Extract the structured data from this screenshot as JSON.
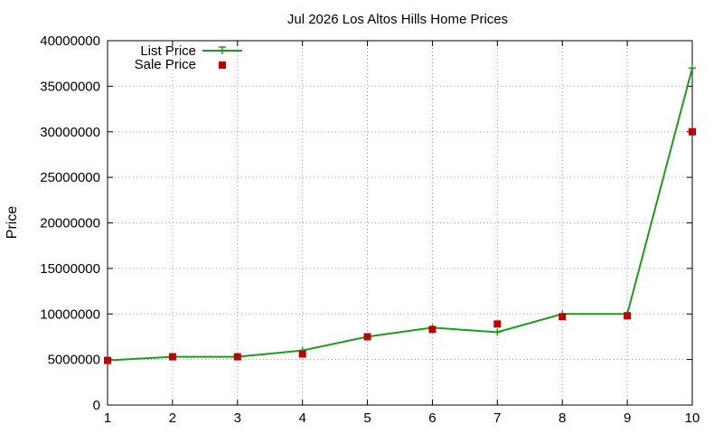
{
  "chart_data": {
    "type": "line",
    "title": "Jul 2026 Los Altos Hills Home Prices",
    "xlabel": "",
    "ylabel": "Price",
    "x": [
      1,
      2,
      3,
      4,
      5,
      6,
      7,
      8,
      9,
      10
    ],
    "xlim": [
      1,
      10
    ],
    "ylim": [
      0,
      40000000
    ],
    "yticks": [
      0,
      5000000,
      10000000,
      15000000,
      20000000,
      25000000,
      30000000,
      35000000,
      40000000
    ],
    "xticks": [
      1,
      2,
      3,
      4,
      5,
      6,
      7,
      8,
      9,
      10
    ],
    "grid": true,
    "legend_position": "top-left",
    "series": [
      {
        "name": "List Price",
        "style": "line with plus markers",
        "color": "#1a9e1a",
        "values": [
          4900000,
          5300000,
          5300000,
          6000000,
          7500000,
          8500000,
          8000000,
          10000000,
          10000000,
          37000000
        ]
      },
      {
        "name": "Sale Price",
        "style": "square points",
        "color": "#c00000",
        "values": [
          4900000,
          5300000,
          5300000,
          5600000,
          7500000,
          8300000,
          8900000,
          9700000,
          9800000,
          30000000
        ]
      }
    ]
  }
}
